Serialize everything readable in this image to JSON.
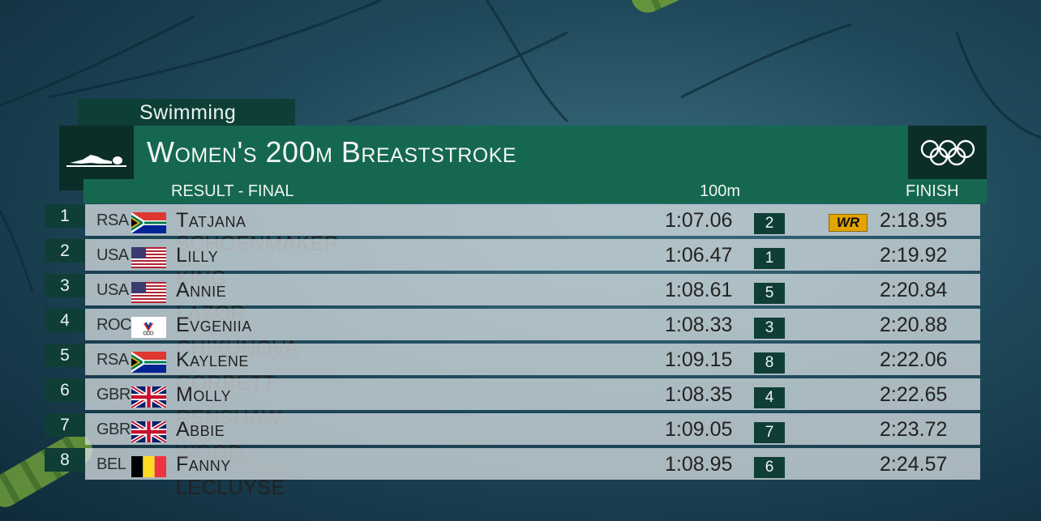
{
  "header": {
    "sport": "Swimming",
    "title": "Women's 200m Breaststroke",
    "subtitle": "RESULT - FINAL",
    "split_label": "100m",
    "finish_label": "FINISH"
  },
  "colors": {
    "panel_green": "#15684f",
    "dark_green": "#0f3e36",
    "record_badge": "#e3a400"
  },
  "results": [
    {
      "rank": "1",
      "noc": "RSA",
      "flag": "rsa-flag",
      "name": "Tatjana SCHOENMAKER",
      "split": "1:07.06",
      "split_rank": "2",
      "record": "WR",
      "finish": "2:18.95"
    },
    {
      "rank": "2",
      "noc": "USA",
      "flag": "usa-flag",
      "name": "Lilly KING",
      "split": "1:06.47",
      "split_rank": "1",
      "record": "",
      "finish": "2:19.92"
    },
    {
      "rank": "3",
      "noc": "USA",
      "flag": "usa-flag",
      "name": "Annie LAZOR",
      "split": "1:08.61",
      "split_rank": "5",
      "record": "",
      "finish": "2:20.84"
    },
    {
      "rank": "4",
      "noc": "ROC",
      "flag": "roc-flag",
      "name": "Evgeniia CHIKUNOVA",
      "split": "1:08.33",
      "split_rank": "3",
      "record": "",
      "finish": "2:20.88"
    },
    {
      "rank": "5",
      "noc": "RSA",
      "flag": "rsa-flag",
      "name": "Kaylene CORBETT",
      "split": "1:09.15",
      "split_rank": "8",
      "record": "",
      "finish": "2:22.06"
    },
    {
      "rank": "6",
      "noc": "GBR",
      "flag": "gbr-flag",
      "name": "Molly RENSHAW",
      "split": "1:08.35",
      "split_rank": "4",
      "record": "",
      "finish": "2:22.65"
    },
    {
      "rank": "7",
      "noc": "GBR",
      "flag": "gbr-flag",
      "name": "Abbie WOOD",
      "split": "1:09.05",
      "split_rank": "7",
      "record": "",
      "finish": "2:23.72"
    },
    {
      "rank": "8",
      "noc": "BEL",
      "flag": "bel-flag",
      "name": "Fanny LECLUYSE",
      "split": "1:08.95",
      "split_rank": "6",
      "record": "",
      "finish": "2:24.57"
    }
  ]
}
